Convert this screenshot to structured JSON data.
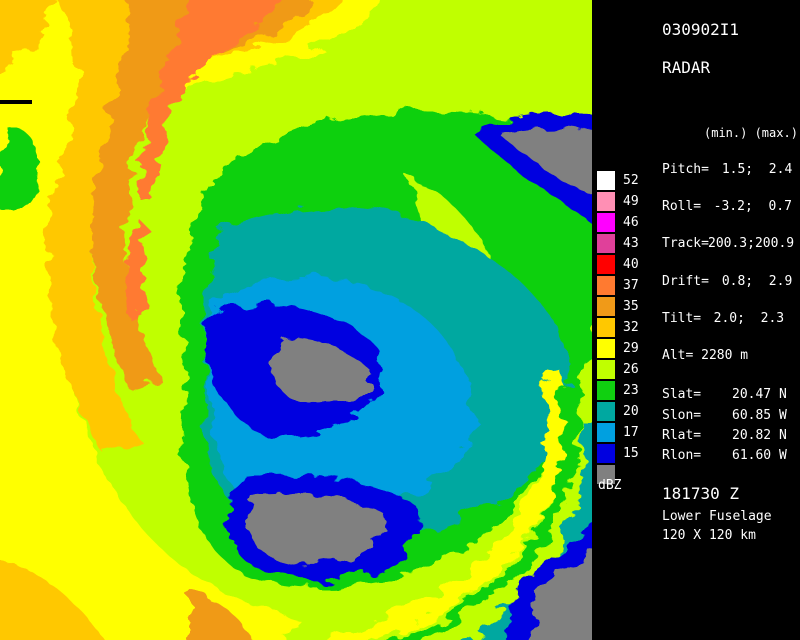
{
  "header": {
    "id": "030902I1",
    "mode": "RADAR",
    "col_header": "(min.) (max.)"
  },
  "params": [
    {
      "label": "Pitch=",
      "value": " 1.5;  2.4"
    },
    {
      "label": "Roll=",
      "value": "  -3.2;  0.7"
    },
    {
      "label": "Track=",
      "value": "200.3;200.9"
    },
    {
      "label": "Drift=",
      "value": " 0.8;  2.9"
    },
    {
      "label": "Tilt=",
      "value": "  2.0;  2.3"
    }
  ],
  "altitude": "Alt= 2280 m",
  "position": [
    {
      "label": "Slat=",
      "value": "20.47 N"
    },
    {
      "label": "Slon=",
      "value": "60.85 W"
    },
    {
      "label": "Rlat=",
      "value": "20.82 N"
    },
    {
      "label": "Rlon=",
      "value": "61.60 W"
    }
  ],
  "time": "181730 Z",
  "antenna": "Lower Fuselage",
  "range": "120 X 120 km",
  "legend": {
    "unit": "dBZ",
    "levels": [
      {
        "label": "52",
        "color": "#ffffff"
      },
      {
        "label": "49",
        "color": "#ff8fb4"
      },
      {
        "label": "46",
        "color": "#ff00ff"
      },
      {
        "label": "43",
        "color": "#e0409a"
      },
      {
        "label": "40",
        "color": "#ff0000"
      },
      {
        "label": "37",
        "color": "#ff7a30"
      },
      {
        "label": "35",
        "color": "#f09a18"
      },
      {
        "label": "32",
        "color": "#ffc800"
      },
      {
        "label": "29",
        "color": "#ffff00"
      },
      {
        "label": "26",
        "color": "#c0ff00"
      },
      {
        "label": "23",
        "color": "#10d010"
      },
      {
        "label": "20",
        "color": "#00a8a0"
      },
      {
        "label": "17",
        "color": "#00a0e0"
      },
      {
        "label": "15",
        "color": "#0000e0"
      },
      {
        "label": "",
        "color": "#808080"
      }
    ]
  }
}
